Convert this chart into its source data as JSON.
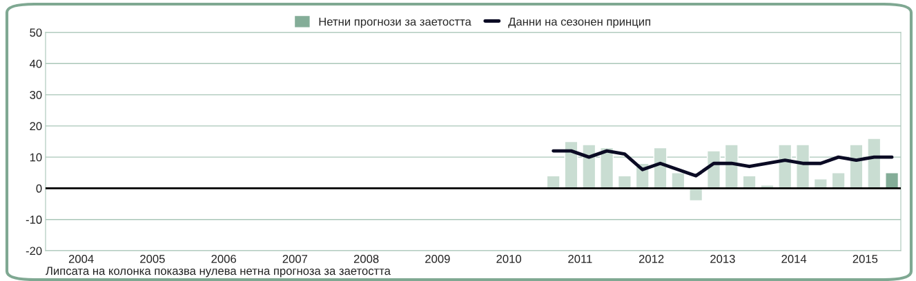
{
  "chart_data": {
    "type": "bar",
    "xlim": [
      2004,
      2016
    ],
    "xticks": [
      {
        "value": 2004.5,
        "label": "2004"
      },
      {
        "value": 2005.5,
        "label": "2005"
      },
      {
        "value": 2006.5,
        "label": "2006"
      },
      {
        "value": 2007.5,
        "label": "2007"
      },
      {
        "value": 2008.5,
        "label": "2008"
      },
      {
        "value": 2009.5,
        "label": "2009"
      },
      {
        "value": 2010.5,
        "label": "2010"
      },
      {
        "value": 2011.5,
        "label": "2011"
      },
      {
        "value": 2012.5,
        "label": "2012"
      },
      {
        "value": 2013.5,
        "label": "2013"
      },
      {
        "value": 2014.5,
        "label": "2014"
      },
      {
        "value": 2015.5,
        "label": "2015"
      }
    ],
    "ylim": [
      -20,
      50
    ],
    "yticks": [
      -20,
      -10,
      0,
      10,
      20,
      30,
      40,
      50
    ],
    "grid": "y",
    "legend": "top",
    "x": [
      2011.125,
      2011.375,
      2011.625,
      2011.875,
      2012.125,
      2012.375,
      2012.625,
      2012.875,
      2013.125,
      2013.375,
      2013.625,
      2013.875,
      2014.125,
      2014.375,
      2014.625,
      2014.875,
      2015.125,
      2015.375,
      2015.625,
      2015.875
    ],
    "series": [
      {
        "name": "Нетни прогнози за заетостта",
        "color": "#c9ddd2",
        "colors": [
          "#c9ddd2",
          "#c9ddd2",
          "#c9ddd2",
          "#c9ddd2",
          "#c9ddd2",
          "#c9ddd2",
          "#c9ddd2",
          "#c9ddd2",
          "#c9ddd2",
          "#c9ddd2",
          "#c9ddd2",
          "#c9ddd2",
          "#c9ddd2",
          "#c9ddd2",
          "#c9ddd2",
          "#c9ddd2",
          "#c9ddd2",
          "#c9ddd2",
          "#c9ddd2",
          "#84ad98"
        ],
        "values": [
          4,
          15,
          14,
          13,
          4,
          8,
          13,
          5,
          -4,
          12,
          14,
          4,
          1,
          14,
          14,
          3,
          5,
          14,
          16,
          5
        ]
      },
      {
        "name": "Данни на сезонен принцип",
        "type": "line",
        "color": "#0b0b24",
        "values": [
          12,
          12,
          10,
          12,
          11,
          6,
          8,
          6,
          4,
          8,
          8,
          7,
          8,
          9,
          8,
          8,
          10,
          9,
          10,
          10
        ]
      }
    ],
    "ref_lines": [
      {
        "axis": "y",
        "value": 0,
        "color": "#000000"
      }
    ],
    "annotations": [
      "Липсата на колонка показва нулева нетна прогноза за заетостта"
    ]
  }
}
